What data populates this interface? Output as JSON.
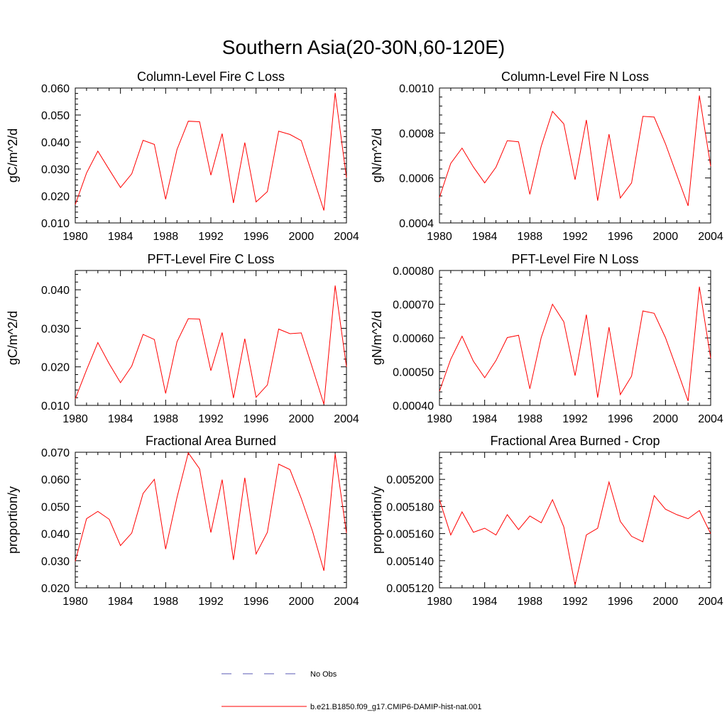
{
  "figure": {
    "title": "Southern Asia(20-30N,60-120E)",
    "legend": {
      "no_obs_label": "No Obs",
      "model_label": "b.e21.B1850.f09_g17.CMIP6-DAMIP-hist-nat.001",
      "no_obs_color": "#5a5ab4",
      "model_color": "#ff0000"
    }
  },
  "chart_data": [
    {
      "type": "line",
      "title": "Column-Level Fire C Loss",
      "ylabel": "gC/m^2/d",
      "xlim": [
        1980,
        2004
      ],
      "ylim": [
        0.01,
        0.06
      ],
      "x_ticks": [
        "1980",
        "1984",
        "1988",
        "1992",
        "1996",
        "2000",
        "2004"
      ],
      "y_ticks": [
        "0.010",
        "0.020",
        "0.030",
        "0.040",
        "0.050",
        "0.060"
      ],
      "y_tick_values": [
        0.01,
        0.02,
        0.03,
        0.04,
        0.05,
        0.06
      ],
      "x": [
        1980,
        1981,
        1982,
        1983,
        1984,
        1985,
        1986,
        1987,
        1988,
        1989,
        1990,
        1991,
        1992,
        1993,
        1994,
        1995,
        1996,
        1997,
        1998,
        1999,
        2000,
        2001,
        2002,
        2003,
        2004
      ],
      "series": [
        {
          "name": "b.e21.B1850.f09_g17.CMIP6-DAMIP-hist-nat.001",
          "values": [
            0.0168,
            0.0285,
            0.0366,
            0.0298,
            0.0231,
            0.0282,
            0.0406,
            0.0391,
            0.0188,
            0.0372,
            0.0477,
            0.0475,
            0.0277,
            0.0431,
            0.0174,
            0.0398,
            0.0178,
            0.0216,
            0.044,
            0.0428,
            0.0405,
            0.0276,
            0.0146,
            0.0582,
            0.0268
          ]
        }
      ]
    },
    {
      "type": "line",
      "title": "Column-Level Fire N Loss",
      "ylabel": "gN/m^2/d",
      "xlim": [
        1980,
        2004
      ],
      "ylim": [
        0.0004,
        0.001
      ],
      "x_ticks": [
        "1980",
        "1984",
        "1988",
        "1992",
        "1996",
        "2000",
        "2004"
      ],
      "y_ticks": [
        "0.0004",
        "0.0006",
        "0.0008",
        "0.0010"
      ],
      "y_tick_values": [
        0.0004,
        0.0006,
        0.0008,
        0.001
      ],
      "x": [
        1980,
        1981,
        1982,
        1983,
        1984,
        1985,
        1986,
        1987,
        1988,
        1989,
        1990,
        1991,
        1992,
        1993,
        1994,
        1995,
        1996,
        1997,
        1998,
        1999,
        2000,
        2001,
        2002,
        2003,
        2004
      ],
      "series": [
        {
          "name": "b.e21.B1850.f09_g17.CMIP6-DAMIP-hist-nat.001",
          "values": [
            0.000513,
            0.000665,
            0.000733,
            0.000649,
            0.000578,
            0.000648,
            0.000766,
            0.000761,
            0.000527,
            0.000741,
            0.000896,
            0.000841,
            0.000592,
            0.000858,
            0.000499,
            0.000795,
            0.000511,
            0.000578,
            0.000874,
            0.000871,
            0.000752,
            0.000613,
            0.000476,
            0.000967,
            0.000652
          ]
        }
      ]
    },
    {
      "type": "line",
      "title": "PFT-Level Fire C Loss",
      "ylabel": "gC/m^2/d",
      "xlim": [
        1980,
        2004
      ],
      "ylim": [
        0.01,
        0.045
      ],
      "x_ticks": [
        "1980",
        "1984",
        "1988",
        "1992",
        "1996",
        "2000",
        "2004"
      ],
      "y_ticks": [
        "0.010",
        "0.020",
        "0.030",
        "0.040"
      ],
      "y_tick_values": [
        0.01,
        0.02,
        0.03,
        0.04
      ],
      "x": [
        1980,
        1981,
        1982,
        1983,
        1984,
        1985,
        1986,
        1987,
        1988,
        1989,
        1990,
        1991,
        1992,
        1993,
        1994,
        1995,
        1996,
        1997,
        1998,
        1999,
        2000,
        2001,
        2002,
        2003,
        2004
      ],
      "series": [
        {
          "name": "b.e21.B1850.f09_g17.CMIP6-DAMIP-hist-nat.001",
          "values": [
            0.0117,
            0.0192,
            0.0263,
            0.0208,
            0.0159,
            0.0202,
            0.0284,
            0.0271,
            0.0131,
            0.0265,
            0.0325,
            0.0324,
            0.019,
            0.0289,
            0.0119,
            0.0273,
            0.0121,
            0.0153,
            0.0298,
            0.0286,
            0.0288,
            0.0196,
            0.0103,
            0.0411,
            0.02
          ]
        }
      ]
    },
    {
      "type": "line",
      "title": "PFT-Level Fire N Loss",
      "ylabel": "gN/m^2/d",
      "xlim": [
        1980,
        2004
      ],
      "ylim": [
        0.0004,
        0.0008
      ],
      "x_ticks": [
        "1980",
        "1984",
        "1988",
        "1992",
        "1996",
        "2000",
        "2004"
      ],
      "y_ticks": [
        "0.00040",
        "0.00050",
        "0.00060",
        "0.00070",
        "0.00080"
      ],
      "y_tick_values": [
        0.0004,
        0.0005,
        0.0006,
        0.0007,
        0.0008
      ],
      "x": [
        1980,
        1981,
        1982,
        1983,
        1984,
        1985,
        1986,
        1987,
        1988,
        1989,
        1990,
        1991,
        1992,
        1993,
        1994,
        1995,
        1996,
        1997,
        1998,
        1999,
        2000,
        2001,
        2002,
        2003,
        2004
      ],
      "series": [
        {
          "name": "b.e21.B1850.f09_g17.CMIP6-DAMIP-hist-nat.001",
          "values": [
            0.000442,
            0.000537,
            0.000605,
            0.000531,
            0.000482,
            0.000533,
            0.000601,
            0.000608,
            0.000449,
            0.000601,
            0.0007,
            0.000648,
            0.000488,
            0.000669,
            0.000423,
            0.000632,
            0.000432,
            0.000487,
            0.00068,
            0.000673,
            0.000601,
            0.000508,
            0.000413,
            0.000752,
            0.00054
          ]
        }
      ]
    },
    {
      "type": "line",
      "title": "Fractional Area Burned",
      "ylabel": "proportion/y",
      "xlim": [
        1980,
        2004
      ],
      "ylim": [
        0.02,
        0.07
      ],
      "x_ticks": [
        "1980",
        "1984",
        "1988",
        "1992",
        "1996",
        "2000",
        "2004"
      ],
      "y_ticks": [
        "0.020",
        "0.030",
        "0.040",
        "0.050",
        "0.060",
        "0.070"
      ],
      "y_tick_values": [
        0.02,
        0.03,
        0.04,
        0.05,
        0.06,
        0.07
      ],
      "x": [
        1980,
        1981,
        1982,
        1983,
        1984,
        1985,
        1986,
        1987,
        1988,
        1989,
        1990,
        1991,
        1992,
        1993,
        1994,
        1995,
        1996,
        1997,
        1998,
        1999,
        2000,
        2001,
        2002,
        2003,
        2004
      ],
      "series": [
        {
          "name": "b.e21.B1850.f09_g17.CMIP6-DAMIP-hist-nat.001",
          "values": [
            0.0298,
            0.0455,
            0.0482,
            0.0453,
            0.0356,
            0.0402,
            0.0548,
            0.06,
            0.0343,
            0.0533,
            0.0698,
            0.0639,
            0.0404,
            0.0599,
            0.0303,
            0.0606,
            0.0325,
            0.0405,
            0.0656,
            0.0636,
            0.053,
            0.0408,
            0.0263,
            0.0694,
            0.0402
          ]
        }
      ]
    },
    {
      "type": "line",
      "title": "Fractional Area Burned - Crop",
      "ylabel": "proportion/y",
      "xlim": [
        1980,
        2004
      ],
      "ylim": [
        0.00512,
        0.00522
      ],
      "x_ticks": [
        "1980",
        "1984",
        "1988",
        "1992",
        "1996",
        "2000",
        "2004"
      ],
      "y_ticks": [
        "0.005120",
        "0.005140",
        "0.005160",
        "0.005180",
        "0.005200"
      ],
      "y_tick_values": [
        0.00512,
        0.00514,
        0.00516,
        0.00518,
        0.0052
      ],
      "x": [
        1980,
        1981,
        1982,
        1983,
        1984,
        1985,
        1986,
        1987,
        1988,
        1989,
        1990,
        1991,
        1992,
        1993,
        1994,
        1995,
        1996,
        1997,
        1998,
        1999,
        2000,
        2001,
        2002,
        2003,
        2004
      ],
      "series": [
        {
          "name": "b.e21.B1850.f09_g17.CMIP6-DAMIP-hist-nat.001",
          "values": [
            0.005185,
            0.005159,
            0.005176,
            0.005161,
            0.005164,
            0.005159,
            0.005174,
            0.005163,
            0.005173,
            0.005168,
            0.005185,
            0.005165,
            0.005122,
            0.005159,
            0.005164,
            0.005198,
            0.005169,
            0.005158,
            0.005154,
            0.005188,
            0.005178,
            0.005174,
            0.005171,
            0.005177,
            0.00516
          ]
        }
      ]
    }
  ]
}
